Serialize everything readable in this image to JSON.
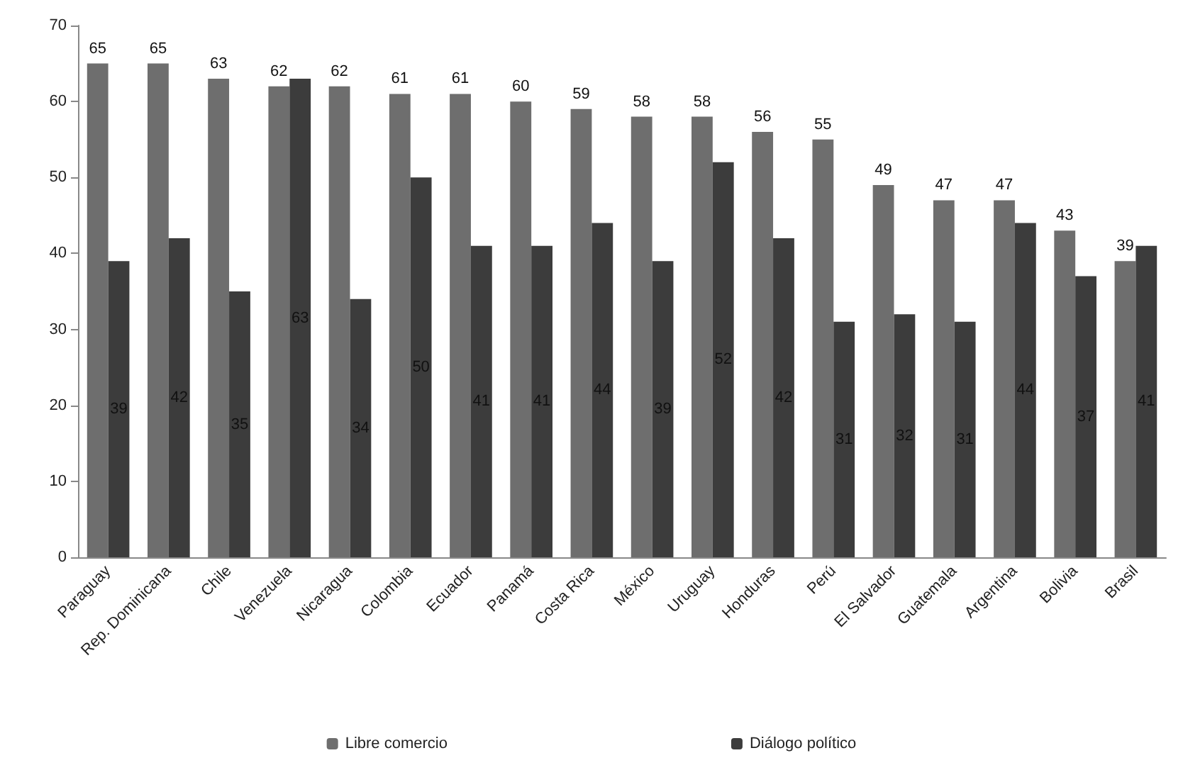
{
  "chart_data": {
    "type": "bar",
    "categories": [
      "Paraguay",
      "Rep. Dominicana",
      "Chile",
      "Venezuela",
      "Nicaragua",
      "Colombia",
      "Ecuador",
      "Panamá",
      "Costa Rica",
      "México",
      "Uruguay",
      "Honduras",
      "Perú",
      "El Salvador",
      "Guatemala",
      "Argentina",
      "Bolivia",
      "Brasil"
    ],
    "series": [
      {
        "name": "Libre comercio",
        "color": "#6e6e6e",
        "values": [
          65,
          65,
          63,
          62,
          62,
          61,
          61,
          60,
          59,
          58,
          58,
          56,
          55,
          49,
          47,
          47,
          43,
          39
        ]
      },
      {
        "name": "Diálogo político",
        "color": "#3c3c3c",
        "values": [
          39,
          42,
          35,
          63,
          34,
          50,
          41,
          41,
          44,
          39,
          52,
          42,
          31,
          32,
          31,
          44,
          37,
          41
        ]
      }
    ],
    "ylim": [
      0,
      70
    ],
    "yticks": [
      0,
      10,
      20,
      30,
      40,
      50,
      60,
      70
    ],
    "grid": false,
    "legend": "bottom",
    "data_labels": true
  }
}
